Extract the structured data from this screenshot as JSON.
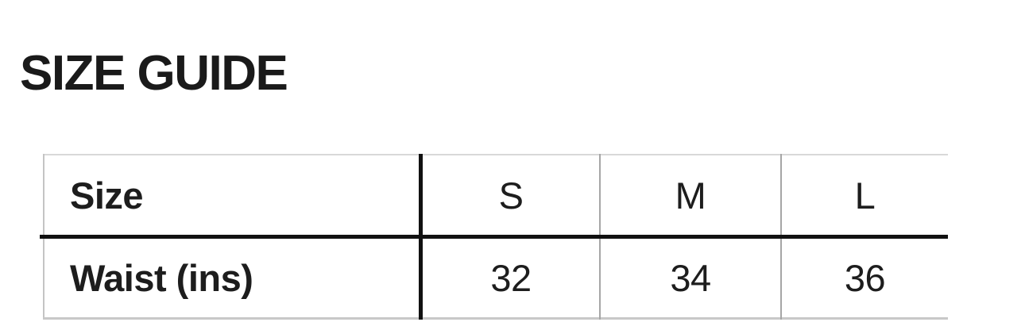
{
  "heading": {
    "title": "SIZE GUIDE"
  },
  "table": {
    "header_cells": [
      "Size",
      "S",
      "M",
      "L"
    ],
    "rows": [
      [
        "Waist (ins)",
        "32",
        "34",
        "36"
      ]
    ]
  },
  "colors": {
    "background": "#ffffff",
    "text": "#1d1d1d",
    "thick_rule": "#111111",
    "thin_rule_top": "#d8d8d8",
    "thin_rule_left": "#c4c4c4",
    "thin_rule_vertical": "#a6a6a6",
    "thin_rule_bottom": "#c8c8c8"
  }
}
